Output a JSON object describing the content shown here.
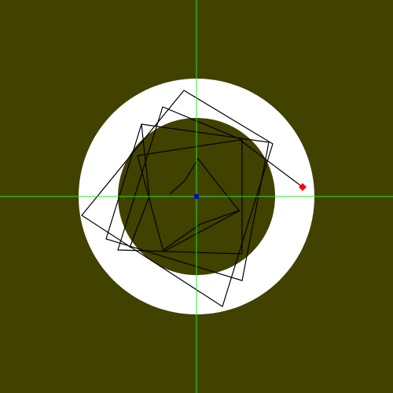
{
  "scene": {
    "colors": {
      "background": "#414100",
      "ring": "#ffffff",
      "inner_disc": "#414100",
      "crosshair": "#00ff00",
      "polyline": "#000000",
      "center_marker": "#0000ff",
      "handle_marker": "#ff0000"
    },
    "shapes": [
      "outer-white-ring",
      "inner-olive-disc",
      "rotated-squares",
      "inner-curved-polyline",
      "center-dot",
      "red-handle"
    ]
  }
}
